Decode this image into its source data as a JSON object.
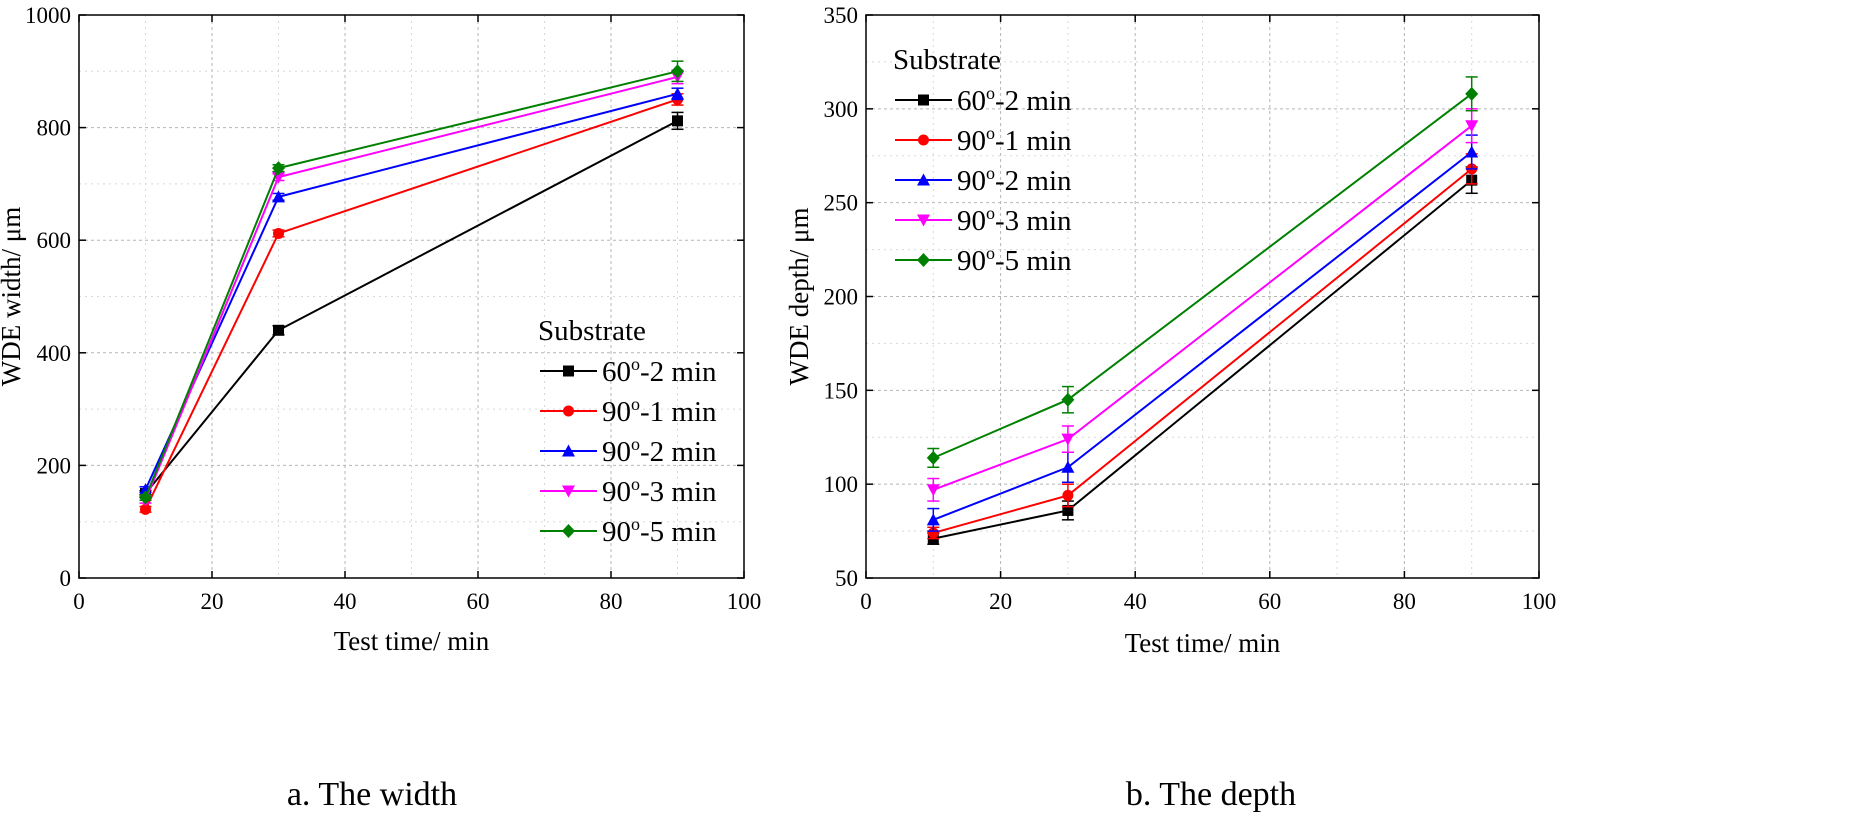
{
  "chart_data": [
    {
      "type": "line",
      "caption": "a. The width",
      "xlabel": "Test time/ min",
      "ylabel": "WDE width/ μm",
      "xlim": [
        0,
        100
      ],
      "ylim": [
        0,
        1000
      ],
      "xticks": [
        0,
        20,
        40,
        60,
        80,
        100
      ],
      "yticks": [
        0,
        200,
        400,
        600,
        800,
        1000
      ],
      "grid": true,
      "legend_title": "Substrate",
      "legend_position": "bottom-right",
      "x": [
        10,
        30,
        90
      ],
      "series": [
        {
          "name": "60°-2 min",
          "label_main": "60",
          "label_sup": "o",
          "label_rest": "-2 min",
          "color": "#000000",
          "marker": "square",
          "values": [
            150,
            440,
            812
          ],
          "errors": [
            5,
            8,
            15
          ]
        },
        {
          "name": "90°-1 min",
          "label_main": "90",
          "label_sup": "o",
          "label_rest": "-1 min",
          "color": "#ff0000",
          "marker": "circle",
          "values": [
            122,
            612,
            850
          ],
          "errors": [
            5,
            6,
            10
          ]
        },
        {
          "name": "90°-2 min",
          "label_main": "90",
          "label_sup": "o",
          "label_rest": "-2 min",
          "color": "#0000ff",
          "marker": "triangle-up",
          "values": [
            157,
            677,
            860
          ],
          "errors": [
            5,
            6,
            10
          ]
        },
        {
          "name": "90°-3 min",
          "label_main": "90",
          "label_sup": "o",
          "label_rest": "-3 min",
          "color": "#ff00ff",
          "marker": "triangle-down",
          "values": [
            138,
            712,
            890
          ],
          "errors": [
            5,
            6,
            12
          ]
        },
        {
          "name": "90°-5 min",
          "label_main": "90",
          "label_sup": "o",
          "label_rest": "-5 min",
          "color": "#008000",
          "marker": "diamond",
          "values": [
            143,
            728,
            900
          ],
          "errors": [
            5,
            6,
            18
          ]
        }
      ]
    },
    {
      "type": "line",
      "caption": "b. The depth",
      "xlabel": "Test time/ min",
      "ylabel": "WDE depth/ μm",
      "xlim": [
        0,
        100
      ],
      "ylim": [
        50,
        350
      ],
      "xticks": [
        0,
        20,
        40,
        60,
        80,
        100
      ],
      "yticks": [
        50,
        100,
        150,
        200,
        250,
        300,
        350
      ],
      "grid": true,
      "legend_title": "Substrate",
      "legend_position": "top-left",
      "x": [
        10,
        30,
        90
      ],
      "series": [
        {
          "name": "60°-2 min",
          "label_main": "60",
          "label_sup": "o",
          "label_rest": "-2 min",
          "color": "#000000",
          "marker": "square",
          "values": [
            71,
            86,
            262
          ],
          "errors": [
            3,
            5,
            7
          ]
        },
        {
          "name": "90°-1 min",
          "label_main": "90",
          "label_sup": "o",
          "label_rest": "-1 min",
          "color": "#ff0000",
          "marker": "circle",
          "values": [
            74,
            94,
            268
          ],
          "errors": [
            3,
            6,
            8
          ]
        },
        {
          "name": "90°-2 min",
          "label_main": "90",
          "label_sup": "o",
          "label_rest": "-2 min",
          "color": "#0000ff",
          "marker": "triangle-up",
          "values": [
            81,
            109,
            277
          ],
          "errors": [
            6,
            8,
            9
          ]
        },
        {
          "name": "90°-3 min",
          "label_main": "90",
          "label_sup": "o",
          "label_rest": "-3 min",
          "color": "#ff00ff",
          "marker": "triangle-down",
          "values": [
            97,
            124,
            291
          ],
          "errors": [
            6,
            7,
            9
          ]
        },
        {
          "name": "90°-5 min",
          "label_main": "90",
          "label_sup": "o",
          "label_rest": "-5 min",
          "color": "#008000",
          "marker": "diamond",
          "values": [
            114,
            145,
            308
          ],
          "errors": [
            5,
            7,
            9
          ]
        }
      ]
    }
  ]
}
